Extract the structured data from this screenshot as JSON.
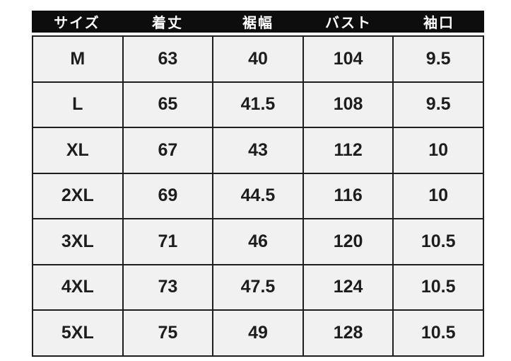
{
  "chart_data": {
    "type": "table",
    "columns": [
      "サイズ",
      "着丈",
      "裾幅",
      "バスト",
      "袖口"
    ],
    "rows": [
      [
        "M",
        "63",
        "40",
        "104",
        "9.5"
      ],
      [
        "L",
        "65",
        "41.5",
        "108",
        "9.5"
      ],
      [
        "XL",
        "67",
        "43",
        "112",
        "10"
      ],
      [
        "2XL",
        "69",
        "44.5",
        "116",
        "10"
      ],
      [
        "3XL",
        "71",
        "46",
        "120",
        "10.5"
      ],
      [
        "4XL",
        "73",
        "47.5",
        "124",
        "10.5"
      ],
      [
        "5XL",
        "75",
        "49",
        "128",
        "10.5"
      ]
    ]
  },
  "colors": {
    "page_bg": "#ffffff",
    "header_bg": "#0d0d0d",
    "header_text": "#ffffff",
    "cell_bg": "#f1f1f1",
    "border": "#1e1e1e",
    "cell_text": "#1d1d1d"
  }
}
